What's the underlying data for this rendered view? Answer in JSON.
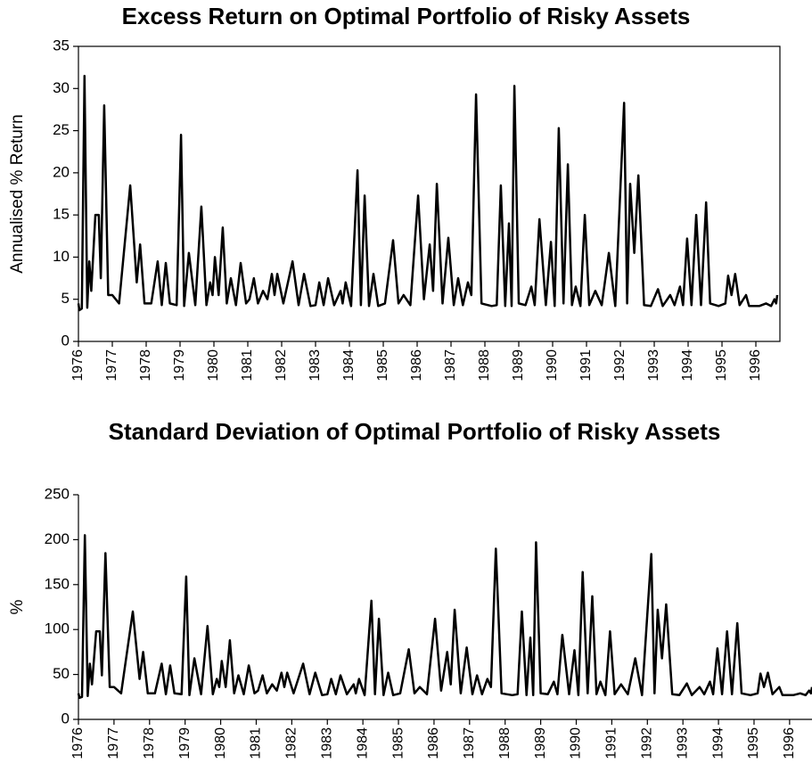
{
  "chart_data": [
    {
      "type": "line",
      "title": "Excess Return on Optimal Portfolio of Risky Assets",
      "y_label": "Annualised % Return",
      "color": "#000000",
      "xlim": [
        1976,
        1996.71
      ],
      "ylim": [
        0,
        35
      ],
      "xticks": [
        1976,
        1977,
        1978,
        1979,
        1980,
        1981,
        1982,
        1983,
        1984,
        1985,
        1986,
        1987,
        1988,
        1989,
        1990,
        1991,
        1992,
        1993,
        1994,
        1995,
        1996
      ],
      "yticks": [
        0,
        5,
        10,
        15,
        20,
        25,
        30,
        35
      ],
      "x": [
        1976.0,
        1976.03,
        1976.1,
        1976.18,
        1976.26,
        1976.32,
        1976.38,
        1976.5,
        1976.6,
        1976.66,
        1976.76,
        1976.88,
        1977.0,
        1977.2,
        1977.53,
        1977.72,
        1977.82,
        1977.95,
        1978.15,
        1978.34,
        1978.46,
        1978.58,
        1978.7,
        1978.9,
        1979.03,
        1979.12,
        1979.26,
        1979.45,
        1979.63,
        1979.78,
        1979.89,
        1979.96,
        1980.03,
        1980.14,
        1980.26,
        1980.38,
        1980.5,
        1980.65,
        1980.79,
        1980.95,
        1981.05,
        1981.18,
        1981.3,
        1981.45,
        1981.58,
        1981.71,
        1981.79,
        1981.87,
        1982.05,
        1982.32,
        1982.5,
        1982.66,
        1982.85,
        1983.0,
        1983.11,
        1983.24,
        1983.37,
        1983.55,
        1983.74,
        1983.8,
        1983.89,
        1984.05,
        1984.24,
        1984.34,
        1984.45,
        1984.58,
        1984.71,
        1984.85,
        1985.05,
        1985.29,
        1985.45,
        1985.6,
        1985.8,
        1986.03,
        1986.2,
        1986.37,
        1986.47,
        1986.58,
        1986.75,
        1986.92,
        1987.08,
        1987.21,
        1987.35,
        1987.5,
        1987.6,
        1987.74,
        1987.9,
        1988.2,
        1988.35,
        1988.47,
        1988.6,
        1988.71,
        1988.79,
        1988.87,
        1989.0,
        1989.2,
        1989.37,
        1989.47,
        1989.61,
        1989.8,
        1989.95,
        1990.06,
        1990.18,
        1990.32,
        1990.45,
        1990.57,
        1990.68,
        1990.82,
        1990.95,
        1991.08,
        1991.26,
        1991.45,
        1991.66,
        1991.85,
        1992.11,
        1992.2,
        1992.29,
        1992.41,
        1992.53,
        1992.7,
        1992.9,
        1993.11,
        1993.25,
        1993.47,
        1993.6,
        1993.76,
        1993.85,
        1993.97,
        1994.1,
        1994.24,
        1994.38,
        1994.53,
        1994.65,
        1994.9,
        1995.1,
        1995.18,
        1995.28,
        1995.39,
        1995.52,
        1995.71,
        1995.8,
        1996.1,
        1996.3,
        1996.45,
        1996.55,
        1996.6,
        1996.63
      ],
      "values": [
        4.5,
        3.7,
        3.9,
        31.5,
        4,
        9.5,
        6,
        15,
        15,
        7.5,
        28,
        5.5,
        5.5,
        4.5,
        18.5,
        7,
        11.5,
        4.5,
        4.5,
        9.5,
        4.3,
        9.3,
        4.5,
        4.3,
        24.5,
        4.2,
        10.5,
        4.3,
        16,
        4.3,
        7,
        5.5,
        10,
        5.5,
        13.5,
        4.5,
        7.5,
        4.3,
        9.3,
        4.5,
        5,
        7.5,
        4.5,
        6,
        5,
        8,
        5.5,
        8,
        4.5,
        9.5,
        4.3,
        8,
        4.2,
        4.3,
        7,
        4.3,
        7.5,
        4.3,
        6,
        4.5,
        7,
        4.2,
        20.3,
        4.3,
        17.3,
        4.2,
        8,
        4.2,
        4.5,
        12,
        4.5,
        5.5,
        4.3,
        17.3,
        5,
        11.5,
        6,
        18.7,
        4.5,
        12.3,
        4.3,
        7.5,
        4.3,
        7,
        5.5,
        29.3,
        4.5,
        4.2,
        4.3,
        18.5,
        4.2,
        14,
        4.2,
        30.3,
        4.5,
        4.3,
        6.5,
        4.3,
        14.5,
        4.3,
        11.8,
        4.2,
        25.3,
        4.5,
        21,
        4.3,
        6.5,
        4.2,
        15,
        4.3,
        6,
        4.3,
        10.5,
        4.2,
        28.3,
        4.5,
        18.7,
        10.5,
        19.7,
        4.3,
        4.2,
        6.2,
        4.2,
        5.5,
        4.3,
        6.5,
        4.3,
        12.2,
        4.3,
        15,
        4.3,
        16.5,
        4.5,
        4.2,
        4.5,
        7.8,
        5.5,
        8,
        4.3,
        5.5,
        4.2,
        4.2,
        4.5,
        4.2,
        5,
        4.5,
        5.5
      ]
    },
    {
      "type": "line",
      "title": "Standard Deviation of Optimal Portfolio of Risky Assets",
      "y_label": "%",
      "color": "#000000",
      "xlim": [
        1976,
        1996.63
      ],
      "ylim": [
        0,
        250
      ],
      "xticks": [
        1976,
        1977,
        1978,
        1979,
        1980,
        1981,
        1982,
        1983,
        1984,
        1985,
        1986,
        1987,
        1988,
        1989,
        1990,
        1991,
        1992,
        1993,
        1994,
        1995,
        1996
      ],
      "yticks": [
        0,
        50,
        100,
        150,
        200,
        250
      ],
      "x": [
        1976.0,
        1976.03,
        1976.1,
        1976.18,
        1976.26,
        1976.32,
        1976.38,
        1976.5,
        1976.6,
        1976.66,
        1976.76,
        1976.88,
        1977.0,
        1977.2,
        1977.53,
        1977.72,
        1977.82,
        1977.95,
        1978.15,
        1978.34,
        1978.46,
        1978.58,
        1978.7,
        1978.9,
        1979.03,
        1979.12,
        1979.26,
        1979.45,
        1979.63,
        1979.78,
        1979.89,
        1979.96,
        1980.03,
        1980.14,
        1980.26,
        1980.38,
        1980.5,
        1980.65,
        1980.79,
        1980.95,
        1981.05,
        1981.18,
        1981.3,
        1981.45,
        1981.58,
        1981.71,
        1981.79,
        1981.87,
        1982.05,
        1982.32,
        1982.5,
        1982.66,
        1982.85,
        1983.0,
        1983.11,
        1983.24,
        1983.37,
        1983.55,
        1983.74,
        1983.8,
        1983.89,
        1984.05,
        1984.24,
        1984.34,
        1984.45,
        1984.58,
        1984.71,
        1984.85,
        1985.05,
        1985.29,
        1985.45,
        1985.6,
        1985.8,
        1986.03,
        1986.2,
        1986.37,
        1986.47,
        1986.58,
        1986.75,
        1986.92,
        1987.08,
        1987.21,
        1987.35,
        1987.5,
        1987.6,
        1987.74,
        1987.9,
        1988.2,
        1988.35,
        1988.47,
        1988.6,
        1988.71,
        1988.79,
        1988.87,
        1989.0,
        1989.2,
        1989.37,
        1989.47,
        1989.61,
        1989.8,
        1989.95,
        1990.06,
        1990.18,
        1990.32,
        1990.45,
        1990.57,
        1990.68,
        1990.82,
        1990.95,
        1991.08,
        1991.26,
        1991.45,
        1991.66,
        1991.85,
        1992.11,
        1992.2,
        1992.29,
        1992.41,
        1992.53,
        1992.7,
        1992.9,
        1993.11,
        1993.25,
        1993.47,
        1993.6,
        1993.76,
        1993.85,
        1993.97,
        1994.1,
        1994.24,
        1994.38,
        1994.53,
        1994.65,
        1994.9,
        1995.1,
        1995.18,
        1995.28,
        1995.39,
        1995.52,
        1995.71,
        1995.8,
        1996.1,
        1996.3,
        1996.45,
        1996.55,
        1996.6,
        1996.63
      ],
      "values": [
        29,
        24,
        25,
        205,
        26,
        62,
        39,
        98,
        98,
        49,
        185,
        36,
        36,
        29,
        120,
        45,
        75,
        29,
        29,
        62,
        28,
        60,
        29,
        28,
        159,
        27,
        68,
        28,
        104,
        28,
        45,
        36,
        65,
        36,
        88,
        29,
        49,
        28,
        60,
        29,
        32,
        49,
        29,
        39,
        32,
        52,
        36,
        52,
        29,
        62,
        28,
        52,
        27,
        28,
        45,
        28,
        49,
        28,
        39,
        29,
        45,
        27,
        132,
        28,
        112,
        27,
        52,
        27,
        29,
        78,
        29,
        36,
        28,
        112,
        32,
        75,
        39,
        122,
        29,
        80,
        28,
        49,
        28,
        45,
        36,
        190,
        29,
        27,
        28,
        120,
        27,
        91,
        27,
        197,
        29,
        28,
        42,
        28,
        94,
        28,
        77,
        27,
        164,
        29,
        137,
        28,
        42,
        27,
        98,
        28,
        39,
        28,
        68,
        27,
        184,
        29,
        122,
        68,
        128,
        28,
        27,
        40,
        27,
        36,
        28,
        42,
        28,
        79,
        28,
        98,
        28,
        107,
        29,
        27,
        29,
        51,
        36,
        52,
        28,
        36,
        27,
        27,
        29,
        27,
        32,
        29,
        36
      ]
    }
  ]
}
